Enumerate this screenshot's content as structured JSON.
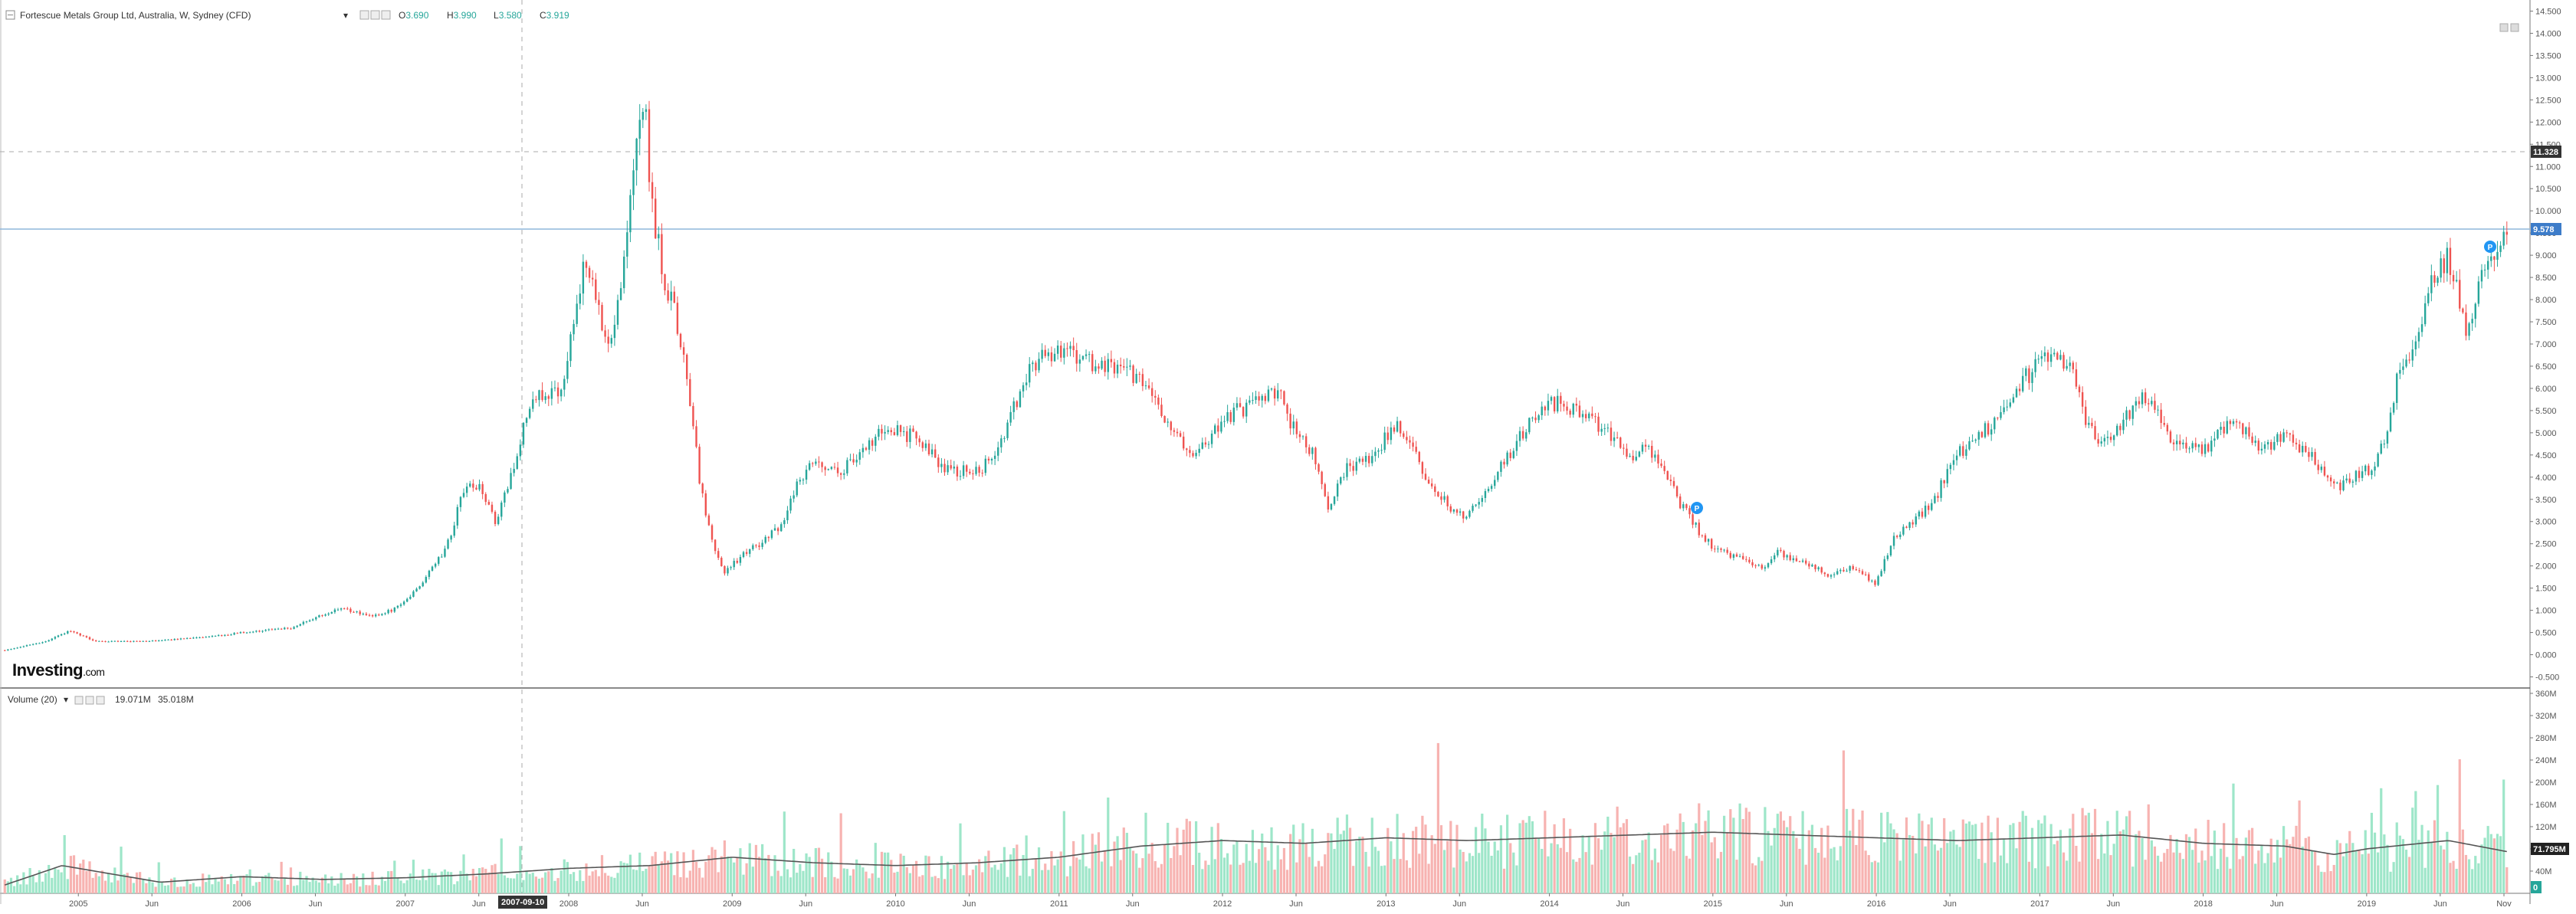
{
  "header": {
    "symbol": "Fortescue Metals Group Ltd, Australia, W, Sydney (CFD)",
    "o_label": "O",
    "o_value": "3.690",
    "h_label": "H",
    "h_value": "3.990",
    "l_label": "L",
    "l_value": "3.580",
    "c_label": "C",
    "c_value": "3.919"
  },
  "volume_header": {
    "label": "Volume (20)",
    "value1": "19.071M",
    "value2": "35.018M"
  },
  "logo": {
    "main": "Investing",
    "suffix": ".com"
  },
  "crosshair": {
    "date_label": "2007-09-10"
  },
  "tags": {
    "dashed_level": "11.328",
    "last_price": "9.578",
    "vol_level": "71.795M",
    "vol_zero": "0"
  },
  "colors": {
    "up": "#26a69a",
    "down": "#ef5350",
    "vol_up": "#9ee6c9",
    "vol_down": "#f7b3b1",
    "price_line": "#4a7fc1",
    "marker": "#2196f3"
  },
  "chart_data": [
    {
      "type": "candlestick",
      "title": "Fortescue Metals Group Ltd, Australia, W, Sydney (CFD)",
      "x_tick_labels": [
        "2005",
        "Jun",
        "2006",
        "Jun",
        "2007",
        "Jun",
        "2008",
        "Jun",
        "2009",
        "Jun",
        "2010",
        "Jun",
        "2011",
        "Jun",
        "2012",
        "Jun",
        "2013",
        "Jun",
        "2014",
        "Jun",
        "2015",
        "Jun",
        "2016",
        "Jun",
        "2017",
        "Jun",
        "2018",
        "Jun",
        "2019",
        "Jun",
        "Nov"
      ],
      "x_tick_years": [
        2005.0,
        2005.45,
        2006.0,
        2006.45,
        2007.0,
        2007.45,
        2008.0,
        2008.45,
        2009.0,
        2009.45,
        2010.0,
        2010.45,
        2011.0,
        2011.45,
        2012.0,
        2012.45,
        2013.0,
        2013.45,
        2014.0,
        2014.45,
        2015.0,
        2015.45,
        2016.0,
        2016.45,
        2017.0,
        2017.45,
        2018.0,
        2018.45,
        2019.0,
        2019.45,
        2019.84
      ],
      "y_ticks": [
        "14.500",
        "14.000",
        "13.500",
        "13.000",
        "12.500",
        "12.000",
        "11.500",
        "11.000",
        "10.500",
        "10.000",
        "9.500",
        "9.000",
        "8.500",
        "8.000",
        "7.500",
        "7.000",
        "6.500",
        "6.000",
        "5.500",
        "5.000",
        "4.500",
        "4.000",
        "3.500",
        "3.000",
        "2.500",
        "2.000",
        "1.500",
        "1.000",
        "0.500",
        "0.000",
        "-0.500"
      ],
      "ylim": [
        -0.75,
        14.75
      ],
      "xlim": [
        2004.53,
        2019.99
      ],
      "close_path": [
        [
          2004.55,
          0.1
        ],
        [
          2004.8,
          0.3
        ],
        [
          2004.95,
          0.55
        ],
        [
          2005.1,
          0.3
        ],
        [
          2005.4,
          0.3
        ],
        [
          2005.8,
          0.4
        ],
        [
          2006.0,
          0.5
        ],
        [
          2006.3,
          0.6
        ],
        [
          2006.5,
          0.9
        ],
        [
          2006.6,
          1.05
        ],
        [
          2006.8,
          0.85
        ],
        [
          2006.95,
          1.05
        ],
        [
          2007.1,
          1.6
        ],
        [
          2007.25,
          2.4
        ],
        [
          2007.35,
          3.6
        ],
        [
          2007.45,
          3.9
        ],
        [
          2007.55,
          3.0
        ],
        [
          2007.65,
          4.0
        ],
        [
          2007.75,
          5.5
        ],
        [
          2007.85,
          5.9
        ],
        [
          2007.95,
          6.0
        ],
        [
          2008.1,
          8.8
        ],
        [
          2008.25,
          7.0
        ],
        [
          2008.35,
          9.2
        ],
        [
          2008.42,
          11.8
        ],
        [
          2008.46,
          12.8
        ],
        [
          2008.5,
          10.2
        ],
        [
          2008.58,
          8.6
        ],
        [
          2008.66,
          7.5
        ],
        [
          2008.73,
          6.2
        ],
        [
          2008.8,
          3.9
        ],
        [
          2008.87,
          2.6
        ],
        [
          2008.95,
          1.85
        ],
        [
          2009.05,
          2.2
        ],
        [
          2009.2,
          2.6
        ],
        [
          2009.3,
          2.9
        ],
        [
          2009.4,
          3.9
        ],
        [
          2009.5,
          4.4
        ],
        [
          2009.65,
          4.1
        ],
        [
          2009.8,
          4.6
        ],
        [
          2009.95,
          5.2
        ],
        [
          2010.1,
          4.9
        ],
        [
          2010.3,
          4.2
        ],
        [
          2010.5,
          4.1
        ],
        [
          2010.65,
          4.8
        ],
        [
          2010.75,
          5.8
        ],
        [
          2010.85,
          6.6
        ],
        [
          2011.0,
          6.8
        ],
        [
          2011.2,
          6.6
        ],
        [
          2011.4,
          6.4
        ],
        [
          2011.55,
          6.0
        ],
        [
          2011.7,
          4.9
        ],
        [
          2011.85,
          4.5
        ],
        [
          2012.0,
          5.3
        ],
        [
          2012.15,
          5.6
        ],
        [
          2012.25,
          5.9
        ],
        [
          2012.35,
          5.8
        ],
        [
          2012.45,
          5.0
        ],
        [
          2012.55,
          4.6
        ],
        [
          2012.65,
          3.2
        ],
        [
          2012.75,
          4.2
        ],
        [
          2012.85,
          4.3
        ],
        [
          2012.95,
          4.6
        ],
        [
          2013.05,
          5.2
        ],
        [
          2013.15,
          4.8
        ],
        [
          2013.25,
          3.9
        ],
        [
          2013.4,
          3.3
        ],
        [
          2013.5,
          3.1
        ],
        [
          2013.6,
          3.6
        ],
        [
          2013.75,
          4.5
        ],
        [
          2013.9,
          5.3
        ],
        [
          2014.0,
          5.7
        ],
        [
          2014.1,
          5.6
        ],
        [
          2014.2,
          5.5
        ],
        [
          2014.35,
          5.0
        ],
        [
          2014.5,
          4.5
        ],
        [
          2014.6,
          4.7
        ],
        [
          2014.7,
          4.2
        ],
        [
          2014.8,
          3.4
        ],
        [
          2014.95,
          2.6
        ],
        [
          2015.05,
          2.3
        ],
        [
          2015.2,
          2.2
        ],
        [
          2015.3,
          1.9
        ],
        [
          2015.4,
          2.3
        ],
        [
          2015.55,
          2.1
        ],
        [
          2015.7,
          1.8
        ],
        [
          2015.85,
          2.0
        ],
        [
          2016.0,
          1.6
        ],
        [
          2016.1,
          2.6
        ],
        [
          2016.25,
          3.1
        ],
        [
          2016.35,
          3.4
        ],
        [
          2016.45,
          4.3
        ],
        [
          2016.6,
          4.9
        ],
        [
          2016.75,
          5.3
        ],
        [
          2016.9,
          6.2
        ],
        [
          2017.05,
          6.7
        ],
        [
          2017.12,
          6.8
        ],
        [
          2017.2,
          6.3
        ],
        [
          2017.3,
          5.1
        ],
        [
          2017.4,
          4.8
        ],
        [
          2017.5,
          5.2
        ],
        [
          2017.6,
          5.8
        ],
        [
          2017.68,
          5.6
        ],
        [
          2017.78,
          5.0
        ],
        [
          2017.9,
          4.7
        ],
        [
          2018.0,
          4.6
        ],
        [
          2018.1,
          5.0
        ],
        [
          2018.2,
          5.2
        ],
        [
          2018.35,
          4.6
        ],
        [
          2018.5,
          4.9
        ],
        [
          2018.62,
          4.6
        ],
        [
          2018.72,
          4.2
        ],
        [
          2018.82,
          3.8
        ],
        [
          2018.92,
          4.0
        ],
        [
          2019.02,
          4.2
        ],
        [
          2019.1,
          4.7
        ],
        [
          2019.2,
          6.5
        ],
        [
          2019.3,
          7.0
        ],
        [
          2019.35,
          7.8
        ],
        [
          2019.42,
          8.5
        ],
        [
          2019.5,
          9.0
        ],
        [
          2019.57,
          8.0
        ],
        [
          2019.62,
          7.2
        ],
        [
          2019.7,
          8.8
        ],
        [
          2019.75,
          8.7
        ],
        [
          2019.82,
          9.3
        ],
        [
          2019.86,
          9.58
        ]
      ]
    },
    {
      "type": "bar",
      "title": "Volume (20)",
      "y_ticks": [
        "360M",
        "320M",
        "280M",
        "240M",
        "200M",
        "160M",
        "120M",
        "80M",
        "40M"
      ],
      "ylim": [
        0,
        360
      ],
      "unit": "M",
      "bars_note": "weekly volume bars from 2004.55 to 2019.86, colored by price direction",
      "volume_ma_path": [
        [
          2004.55,
          15
        ],
        [
          2004.9,
          50
        ],
        [
          2005.1,
          40
        ],
        [
          2005.5,
          20
        ],
        [
          2006.0,
          30
        ],
        [
          2006.5,
          25
        ],
        [
          2007.0,
          28
        ],
        [
          2007.5,
          35
        ],
        [
          2008.0,
          45
        ],
        [
          2008.5,
          50
        ],
        [
          2009.0,
          65
        ],
        [
          2009.5,
          55
        ],
        [
          2010.0,
          50
        ],
        [
          2010.5,
          55
        ],
        [
          2011.0,
          65
        ],
        [
          2011.5,
          85
        ],
        [
          2012.0,
          95
        ],
        [
          2012.5,
          90
        ],
        [
          2013.0,
          100
        ],
        [
          2013.5,
          95
        ],
        [
          2014.0,
          100
        ],
        [
          2014.5,
          105
        ],
        [
          2015.0,
          110
        ],
        [
          2015.5,
          105
        ],
        [
          2016.0,
          100
        ],
        [
          2016.5,
          95
        ],
        [
          2017.0,
          100
        ],
        [
          2017.5,
          105
        ],
        [
          2018.0,
          90
        ],
        [
          2018.5,
          85
        ],
        [
          2018.8,
          70
        ],
        [
          2019.0,
          80
        ],
        [
          2019.5,
          95
        ],
        [
          2019.86,
          75
        ]
      ]
    }
  ]
}
